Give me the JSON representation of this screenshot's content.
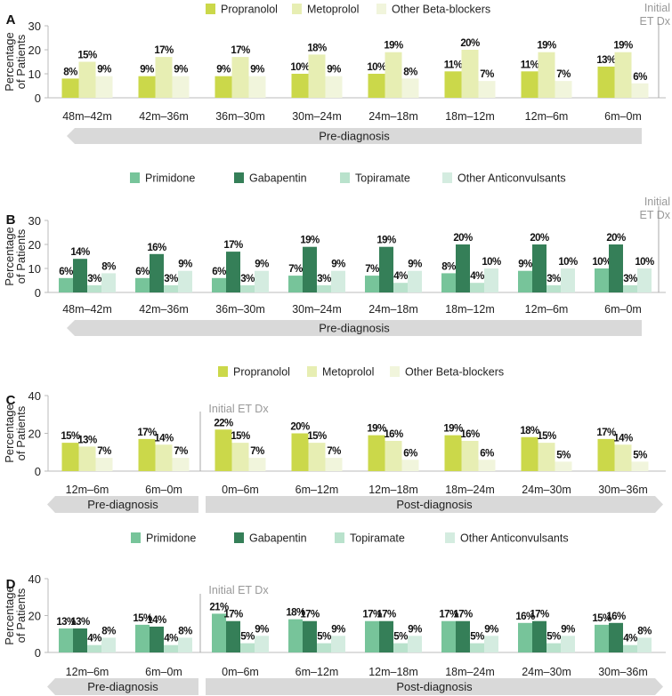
{
  "chart_data": [
    {
      "type": "bar",
      "panel_label": "A",
      "ylabel": [
        "Percentage",
        "of Patients"
      ],
      "ylim": [
        0,
        30
      ],
      "yticks": [
        0,
        10,
        20,
        30
      ],
      "categories": [
        "48m–42m",
        "42m–36m",
        "36m–30m",
        "30m–24m",
        "24m–18m",
        "18m–12m",
        "12m–6m",
        "6m–0m"
      ],
      "series": [
        {
          "name": "Propranolol",
          "color": "#cbd84a",
          "values": [
            8,
            9,
            9,
            10,
            10,
            11,
            11,
            13
          ]
        },
        {
          "name": "Metoprolol",
          "color": "#e7eeb3",
          "values": [
            15,
            17,
            17,
            18,
            19,
            20,
            19,
            19
          ]
        },
        {
          "name": "Other Beta-blockers",
          "color": "#f1f5dc",
          "values": [
            9,
            9,
            9,
            9,
            8,
            7,
            7,
            6
          ]
        }
      ],
      "marker_label": [
        "Initial",
        "ET Dx"
      ],
      "periods": [
        "Pre-diagnosis"
      ]
    },
    {
      "type": "bar",
      "panel_label": "B",
      "ylabel": [
        "Percentage",
        "of Patients"
      ],
      "ylim": [
        0,
        30
      ],
      "yticks": [
        0,
        10,
        20,
        30
      ],
      "categories": [
        "48m–42m",
        "42m–36m",
        "36m–30m",
        "30m–24m",
        "24m–18m",
        "18m–12m",
        "12m–6m",
        "6m–0m"
      ],
      "series": [
        {
          "name": "Primidone",
          "color": "#77c49a",
          "values": [
            6,
            6,
            6,
            7,
            7,
            8,
            9,
            10
          ]
        },
        {
          "name": "Gabapentin",
          "color": "#357f58",
          "values": [
            14,
            16,
            17,
            19,
            19,
            20,
            20,
            20
          ]
        },
        {
          "name": "Topiramate",
          "color": "#b9e2cc",
          "values": [
            3,
            3,
            3,
            3,
            4,
            4,
            3,
            3
          ]
        },
        {
          "name": "Other Anticonvulsants",
          "color": "#d4ece0",
          "values": [
            8,
            9,
            9,
            9,
            9,
            10,
            10,
            10
          ]
        }
      ],
      "marker_label": [
        "Initial",
        "ET Dx"
      ],
      "periods": [
        "Pre-diagnosis"
      ]
    },
    {
      "type": "bar",
      "panel_label": "C",
      "ylabel": [
        "Percentage",
        "of Patients"
      ],
      "ylim": [
        0,
        40
      ],
      "yticks": [
        0,
        20,
        40
      ],
      "categories": [
        "12m–6m",
        "6m–0m",
        "0m–6m",
        "6m–12m",
        "12m–18m",
        "18m–24m",
        "24m–30m",
        "30m–36m"
      ],
      "series": [
        {
          "name": "Propranolol",
          "color": "#cbd84a",
          "values": [
            15,
            17,
            22,
            20,
            19,
            19,
            18,
            17
          ]
        },
        {
          "name": "Metoprolol",
          "color": "#e7eeb3",
          "values": [
            13,
            14,
            15,
            15,
            16,
            16,
            15,
            14
          ]
        },
        {
          "name": "Other Beta-blockers",
          "color": "#f1f5dc",
          "values": [
            7,
            7,
            7,
            7,
            6,
            6,
            5,
            5
          ]
        }
      ],
      "marker_label": [
        "Initial ET Dx"
      ],
      "periods": [
        "Pre-diagnosis",
        "Post-diagnosis"
      ]
    },
    {
      "type": "bar",
      "panel_label": "D",
      "ylabel": [
        "Percentage",
        "of Patients"
      ],
      "ylim": [
        0,
        40
      ],
      "yticks": [
        0,
        20,
        40
      ],
      "categories": [
        "12m–6m",
        "6m–0m",
        "0m–6m",
        "6m–12m",
        "12m–18m",
        "18m–24m",
        "24m–30m",
        "30m–36m"
      ],
      "series": [
        {
          "name": "Primidone",
          "color": "#77c49a",
          "values": [
            13,
            15,
            21,
            18,
            17,
            17,
            16,
            15
          ]
        },
        {
          "name": "Gabapentin",
          "color": "#357f58",
          "values": [
            13,
            14,
            17,
            17,
            17,
            17,
            17,
            16
          ]
        },
        {
          "name": "Topiramate",
          "color": "#b9e2cc",
          "values": [
            4,
            4,
            5,
            5,
            5,
            5,
            5,
            4
          ]
        },
        {
          "name": "Other Anticonvulsants",
          "color": "#d4ece0",
          "values": [
            8,
            8,
            9,
            9,
            9,
            9,
            9,
            8
          ]
        }
      ],
      "marker_label": [
        "Initial ET Dx"
      ],
      "periods": [
        "Pre-diagnosis",
        "Post-diagnosis"
      ]
    }
  ]
}
